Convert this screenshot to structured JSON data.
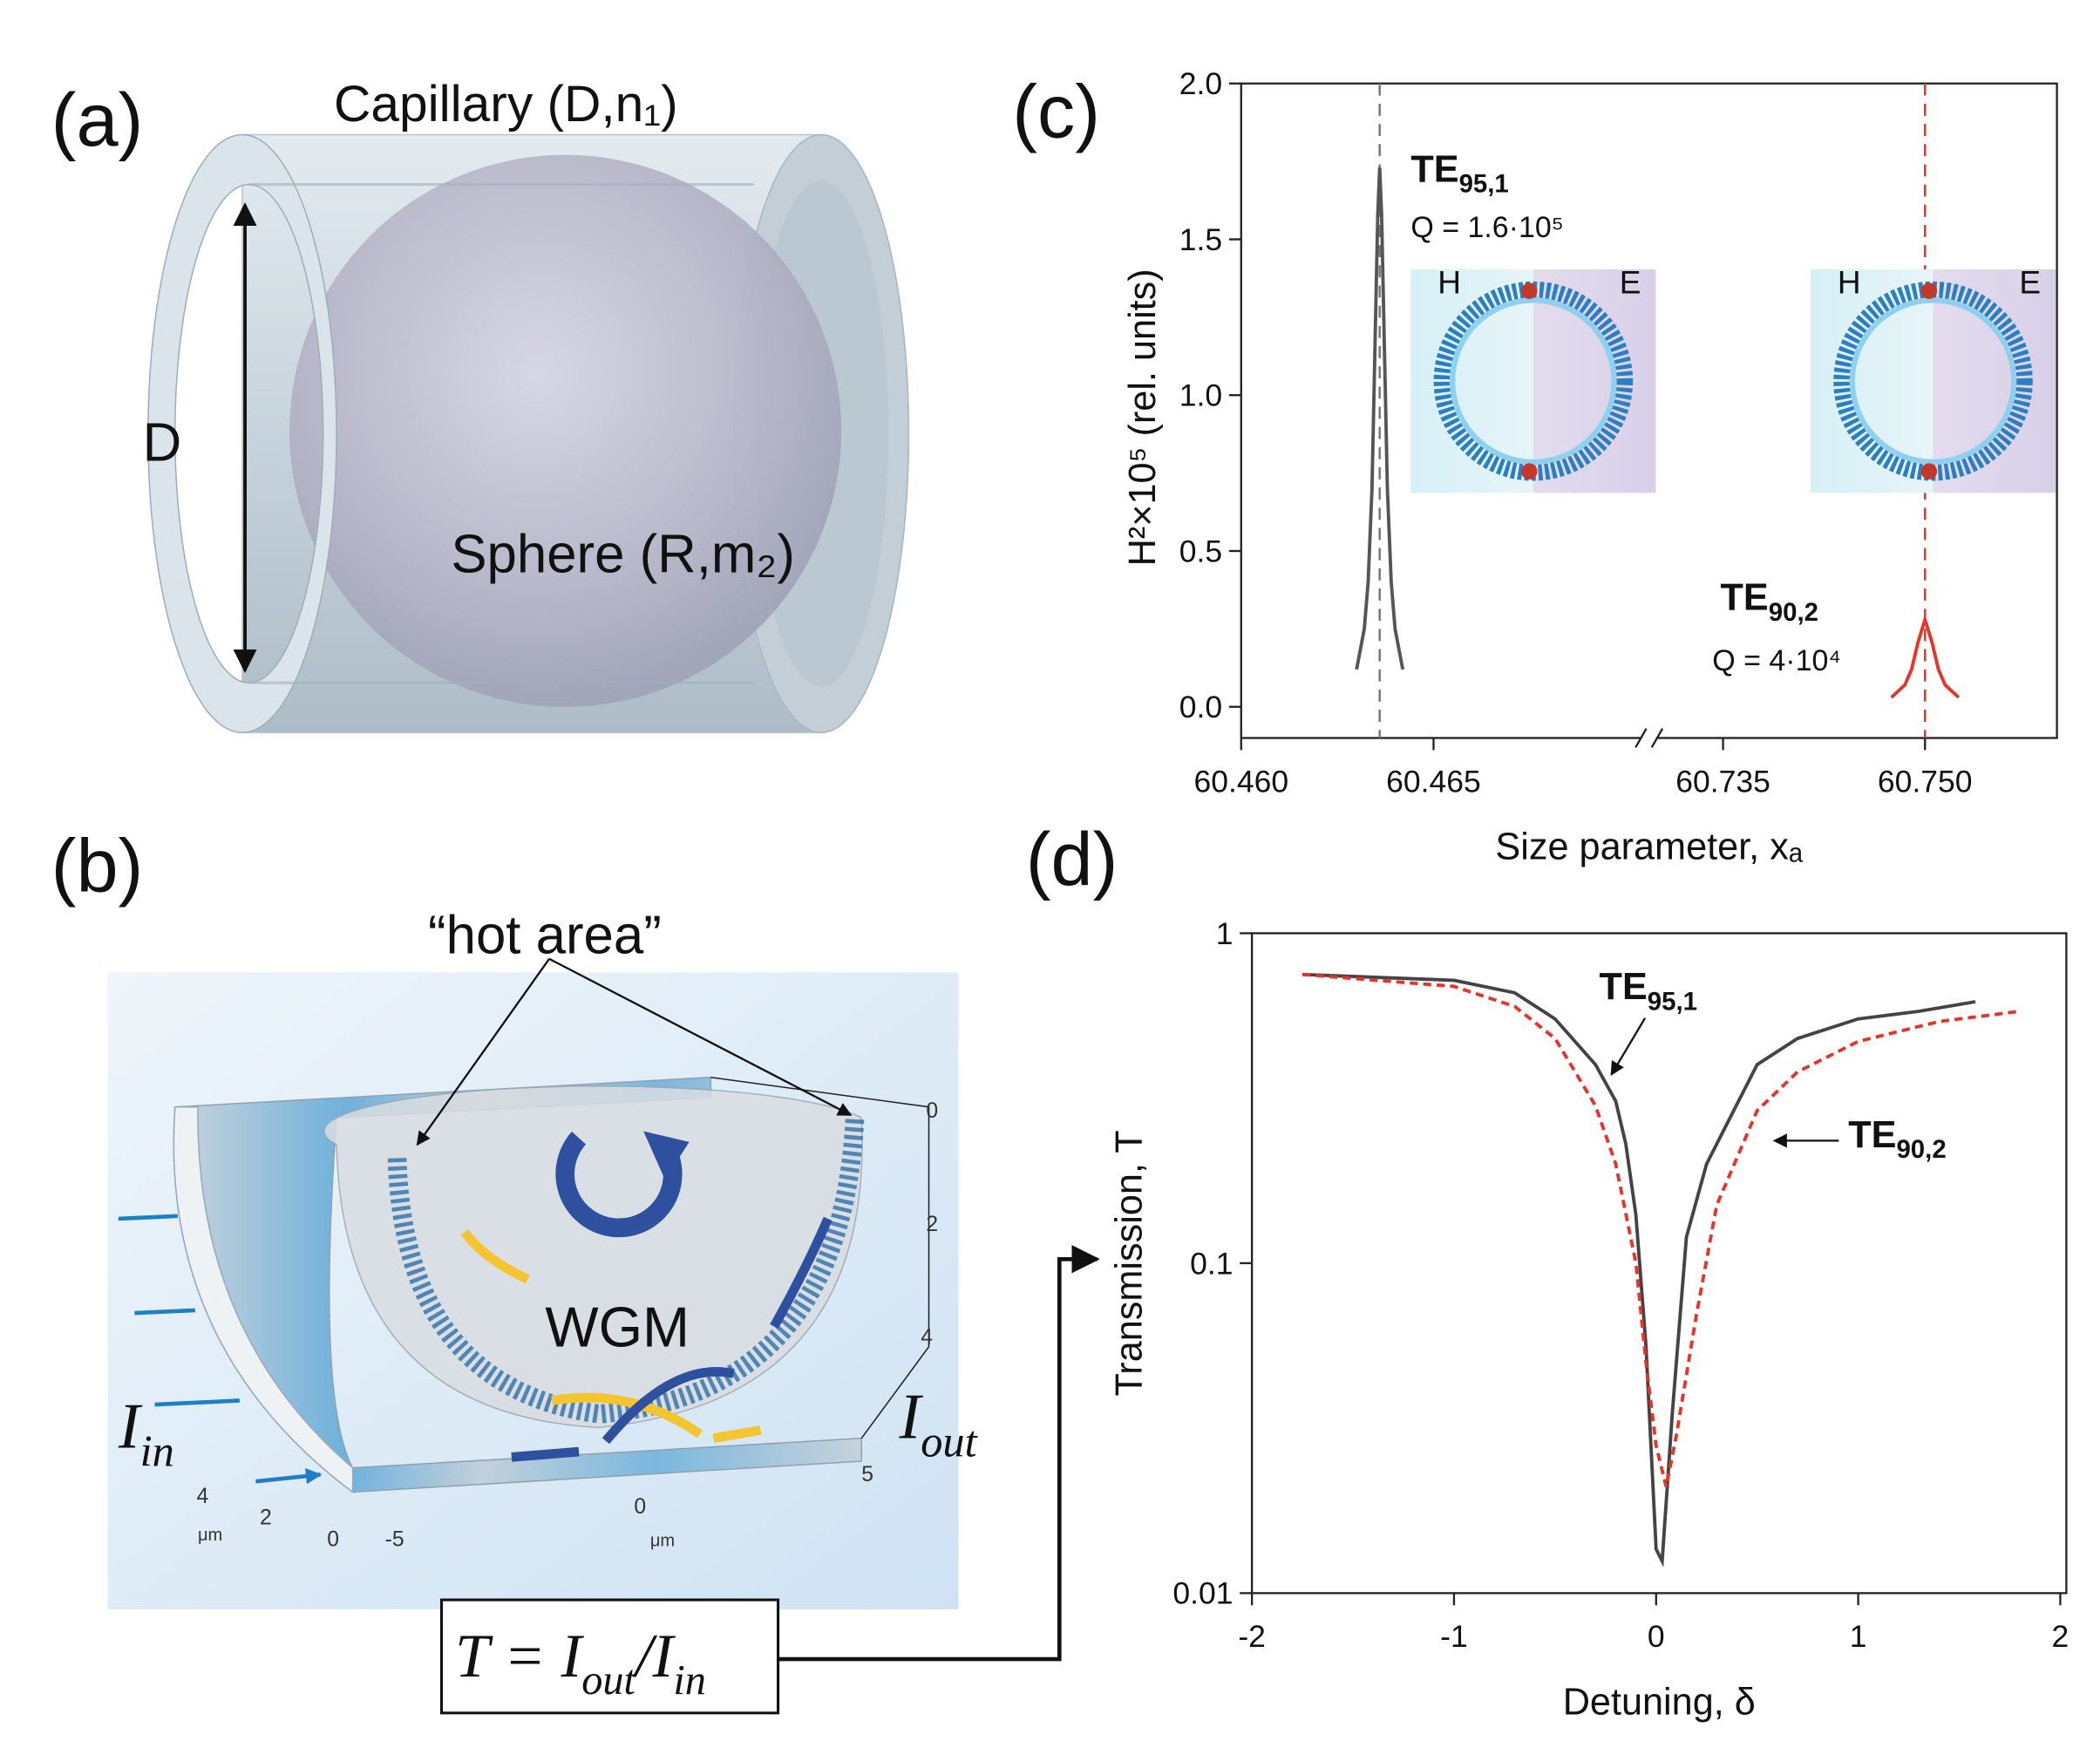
{
  "panels": {
    "a": {
      "label": "(a)",
      "capillary": "Capillary (D,n₁)",
      "diameter": "D",
      "sphere": "Sphere (R,m₂)"
    },
    "b": {
      "label": "(b)",
      "hot_area": "“hot area”",
      "mode": "WGM",
      "input": {
        "text": "I",
        "sub": "in"
      },
      "output": {
        "text": "I",
        "sub": "out"
      },
      "scale_labels": [
        "0",
        "2",
        "4",
        "5",
        "0",
        "-5",
        "4",
        "2",
        "0",
        "μm",
        "μm"
      ],
      "formula": {
        "lhs": "T = I",
        "sub1": "out",
        "mid": "/I",
        "sub2": "in"
      }
    }
  },
  "chart_data": [
    {
      "type": "line",
      "panel_label": "(c)",
      "ylabel": "H²×10⁵ (rel. units)",
      "xlabel": "Size parameter, xₐ",
      "xlim": [
        60.46,
        60.7598
      ],
      "x_break": [
        60.4706,
        60.7295
      ],
      "xticks": [
        {
          "value": 60.46,
          "label": "60.460"
        },
        {
          "value": 60.465,
          "label": "60.465"
        },
        {
          "value": 60.735,
          "label": "60.735"
        },
        {
          "value": 60.75,
          "label": "60.750"
        }
      ],
      "ylim": [
        -0.1,
        2.0
      ],
      "yticks": [
        {
          "value": 0,
          "label": "0.0"
        },
        0.5,
        {
          "value": 1,
          "label": "1.0"
        },
        1.5,
        {
          "value": 2,
          "label": "2.0"
        }
      ],
      "series": [
        {
          "color": "#555555",
          "dash": false,
          "x": [
            60.463,
            60.4632,
            60.4633,
            60.4634,
            60.46355,
            60.4636,
            60.46365,
            60.4638,
            60.4639,
            60.464,
            60.4642
          ],
          "values": [
            0.12,
            0.25,
            0.4,
            0.7,
            1.58,
            1.73,
            1.58,
            0.7,
            0.4,
            0.25,
            0.12
          ]
        },
        {
          "color": "#e8332a",
          "dash": false,
          "x": [
            60.7475,
            60.7485,
            60.749,
            60.7495,
            60.75,
            60.7505,
            60.751,
            60.7515,
            60.7525
          ],
          "values": [
            0.03,
            0.07,
            0.12,
            0.21,
            0.28,
            0.21,
            0.12,
            0.07,
            0.03
          ]
        }
      ],
      "vlines": [
        {
          "x": 60.4636,
          "color": "#777777"
        },
        {
          "x": 60.75,
          "color": "#e8332a"
        }
      ],
      "annotations": [
        {
          "text": "TE",
          "sub": "95,1",
          "q": "Q = 1.6·10⁵"
        },
        {
          "text": "TE",
          "sub": "90,2",
          "q": "Q = 4·10⁴"
        }
      ],
      "insets": [
        {
          "left": "H",
          "right": "E"
        },
        {
          "left": "H",
          "right": "E"
        }
      ]
    },
    {
      "type": "line",
      "panel_label": "(d)",
      "ylabel": "Transmission, T",
      "xlabel": "Detuning, δ",
      "log_y": true,
      "xlim": [
        -2,
        2.03
      ],
      "xticks": [
        -2,
        -1,
        0,
        1,
        2
      ],
      "ylim": [
        0.01,
        1
      ],
      "yticks": [
        0.01,
        0.1,
        1
      ],
      "series": [
        {
          "color": "#444444",
          "dash": false,
          "x": [
            -1.75,
            -1.0,
            -0.7,
            -0.5,
            -0.3,
            -0.2,
            -0.15,
            -0.1,
            -0.05,
            0,
            0.03,
            0.08,
            0.15,
            0.25,
            0.5,
            0.7,
            1.0,
            1.3,
            1.58
          ],
          "values": [
            0.75,
            0.72,
            0.66,
            0.55,
            0.4,
            0.31,
            0.23,
            0.14,
            0.056,
            0.0136,
            0.0125,
            0.035,
            0.12,
            0.2,
            0.4,
            0.48,
            0.55,
            0.58,
            0.62
          ]
        },
        {
          "color": "#e8332a",
          "dash": true,
          "x": [
            -1.75,
            -1.0,
            -0.7,
            -0.5,
            -0.3,
            -0.2,
            -0.1,
            -0.05,
            0,
            0.05,
            0.1,
            0.2,
            0.3,
            0.5,
            0.7,
            1.0,
            1.4,
            1.8
          ],
          "values": [
            0.75,
            0.69,
            0.6,
            0.48,
            0.3,
            0.2,
            0.1,
            0.05,
            0.028,
            0.021,
            0.03,
            0.07,
            0.15,
            0.29,
            0.38,
            0.47,
            0.54,
            0.58
          ]
        }
      ],
      "annotations": [
        {
          "text": "TE",
          "sub": "95,1"
        },
        {
          "text": "TE",
          "sub": "90,2"
        }
      ]
    }
  ]
}
